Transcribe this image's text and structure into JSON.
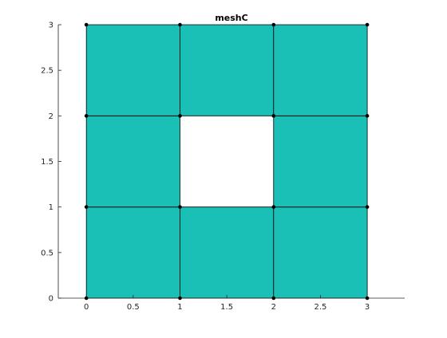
{
  "chart_data": {
    "type": "mesh",
    "title": "meshC",
    "xlabel": "",
    "ylabel": "",
    "xlim": [
      -0.3,
      3.4
    ],
    "ylim": [
      0,
      3
    ],
    "xticks": [
      0,
      0.5,
      1,
      1.5,
      2,
      2.5,
      3
    ],
    "xtick_labels": [
      "0",
      "0.5",
      "1",
      "1.5",
      "2",
      "2.5",
      "3"
    ],
    "yticks": [
      0,
      0.5,
      1,
      1.5,
      2,
      2.5,
      3
    ],
    "ytick_labels": [
      "0",
      "0.5",
      "1",
      "1.5",
      "2",
      "2.5",
      "3"
    ],
    "grid": false,
    "face_color": "#1abfb6",
    "edge_color": "#000000",
    "vertex_color": "#000000",
    "axis_color": "#262626",
    "nodes": [
      [
        0,
        0
      ],
      [
        1,
        0
      ],
      [
        2,
        0
      ],
      [
        3,
        0
      ],
      [
        0,
        1
      ],
      [
        1,
        1
      ],
      [
        2,
        1
      ],
      [
        3,
        1
      ],
      [
        0,
        2
      ],
      [
        1,
        2
      ],
      [
        2,
        2
      ],
      [
        3,
        2
      ],
      [
        0,
        3
      ],
      [
        1,
        3
      ],
      [
        2,
        3
      ],
      [
        3,
        3
      ]
    ],
    "elements": [
      [
        0,
        1,
        5,
        4
      ],
      [
        1,
        2,
        6,
        5
      ],
      [
        2,
        3,
        7,
        6
      ],
      [
        4,
        5,
        9,
        8
      ],
      [
        6,
        7,
        11,
        10
      ],
      [
        8,
        9,
        13,
        12
      ],
      [
        9,
        10,
        14,
        13
      ],
      [
        10,
        11,
        15,
        14
      ]
    ]
  }
}
